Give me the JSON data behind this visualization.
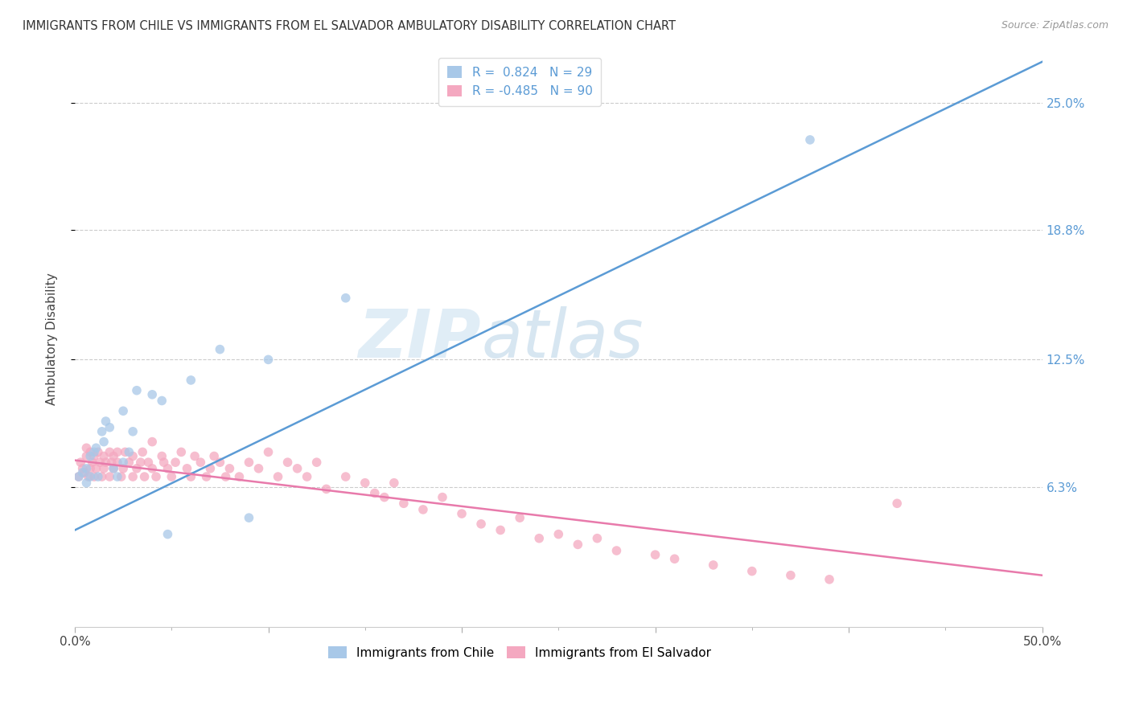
{
  "title": "IMMIGRANTS FROM CHILE VS IMMIGRANTS FROM EL SALVADOR AMBULATORY DISABILITY CORRELATION CHART",
  "source": "Source: ZipAtlas.com",
  "ylabel": "Ambulatory Disability",
  "ytick_labels": [
    "6.3%",
    "12.5%",
    "18.8%",
    "25.0%"
  ],
  "ytick_values": [
    0.063,
    0.125,
    0.188,
    0.25
  ],
  "xlim": [
    0.0,
    0.5
  ],
  "ylim": [
    -0.005,
    0.275
  ],
  "chile_R": 0.824,
  "chile_N": 29,
  "salvador_R": -0.485,
  "salvador_N": 90,
  "chile_color": "#a8c8e8",
  "salvador_color": "#f4a8c0",
  "chile_line_color": "#5b9bd5",
  "salvador_line_color": "#e87aab",
  "watermark_zip": "ZIP",
  "watermark_atlas": "atlas",
  "chile_scatter_x": [
    0.002,
    0.004,
    0.006,
    0.006,
    0.008,
    0.008,
    0.01,
    0.011,
    0.012,
    0.014,
    0.015,
    0.016,
    0.018,
    0.02,
    0.022,
    0.025,
    0.025,
    0.028,
    0.03,
    0.032,
    0.04,
    0.045,
    0.048,
    0.06,
    0.075,
    0.09,
    0.1,
    0.14,
    0.38
  ],
  "chile_scatter_y": [
    0.068,
    0.07,
    0.065,
    0.072,
    0.068,
    0.078,
    0.08,
    0.082,
    0.068,
    0.09,
    0.085,
    0.095,
    0.092,
    0.072,
    0.068,
    0.1,
    0.075,
    0.08,
    0.09,
    0.11,
    0.108,
    0.105,
    0.04,
    0.115,
    0.13,
    0.048,
    0.125,
    0.155,
    0.232
  ],
  "salvador_scatter_x": [
    0.002,
    0.003,
    0.004,
    0.005,
    0.006,
    0.006,
    0.007,
    0.008,
    0.008,
    0.009,
    0.01,
    0.01,
    0.011,
    0.012,
    0.013,
    0.014,
    0.015,
    0.015,
    0.016,
    0.018,
    0.018,
    0.019,
    0.02,
    0.02,
    0.022,
    0.022,
    0.024,
    0.025,
    0.026,
    0.028,
    0.03,
    0.03,
    0.032,
    0.034,
    0.035,
    0.036,
    0.038,
    0.04,
    0.04,
    0.042,
    0.045,
    0.046,
    0.048,
    0.05,
    0.052,
    0.055,
    0.058,
    0.06,
    0.062,
    0.065,
    0.068,
    0.07,
    0.072,
    0.075,
    0.078,
    0.08,
    0.085,
    0.09,
    0.095,
    0.1,
    0.105,
    0.11,
    0.115,
    0.12,
    0.125,
    0.13,
    0.14,
    0.15,
    0.155,
    0.16,
    0.165,
    0.17,
    0.18,
    0.19,
    0.2,
    0.21,
    0.22,
    0.23,
    0.24,
    0.25,
    0.26,
    0.27,
    0.28,
    0.3,
    0.31,
    0.33,
    0.35,
    0.37,
    0.39,
    0.425
  ],
  "salvador_scatter_y": [
    0.068,
    0.075,
    0.072,
    0.07,
    0.078,
    0.082,
    0.068,
    0.072,
    0.08,
    0.075,
    0.068,
    0.078,
    0.072,
    0.08,
    0.075,
    0.068,
    0.072,
    0.078,
    0.075,
    0.08,
    0.068,
    0.075,
    0.078,
    0.072,
    0.075,
    0.08,
    0.068,
    0.072,
    0.08,
    0.075,
    0.078,
    0.068,
    0.072,
    0.075,
    0.08,
    0.068,
    0.075,
    0.072,
    0.085,
    0.068,
    0.078,
    0.075,
    0.072,
    0.068,
    0.075,
    0.08,
    0.072,
    0.068,
    0.078,
    0.075,
    0.068,
    0.072,
    0.078,
    0.075,
    0.068,
    0.072,
    0.068,
    0.075,
    0.072,
    0.08,
    0.068,
    0.075,
    0.072,
    0.068,
    0.075,
    0.062,
    0.068,
    0.065,
    0.06,
    0.058,
    0.065,
    0.055,
    0.052,
    0.058,
    0.05,
    0.045,
    0.042,
    0.048,
    0.038,
    0.04,
    0.035,
    0.038,
    0.032,
    0.03,
    0.028,
    0.025,
    0.022,
    0.02,
    0.018,
    0.055
  ]
}
